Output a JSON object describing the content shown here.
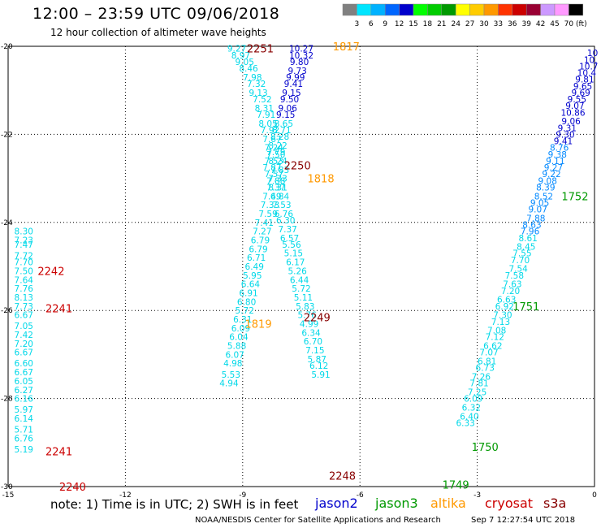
{
  "title": "12:00 – 23:59 UTC 09/06/2018",
  "subtitle": "12 hour collection of altimeter wave heights",
  "note": "note:  1) Time is in UTC;  2) SWH is in feet",
  "credit_left": "NOAA/NESDIS Center for Satellite Applications and Research",
  "credit_right": "Sep  7 12:27:54 UTC 2018",
  "satellites": [
    {
      "name": "jason2",
      "color": "#0000cc"
    },
    {
      "name": "jason3",
      "color": "#009900"
    },
    {
      "name": "altika",
      "color": "#ff9900"
    },
    {
      "name": "cryosat",
      "color": "#cc0000"
    },
    {
      "name": "s3a",
      "color": "#880000"
    }
  ],
  "colorbar": {
    "unit": "(ft)",
    "labels": [
      "3",
      "6",
      "9",
      "12",
      "15",
      "18",
      "21",
      "24",
      "27",
      "30",
      "33",
      "36",
      "39",
      "42",
      "45",
      "70"
    ],
    "colors": [
      "#808080",
      "#00e5ff",
      "#00b2ff",
      "#0066ff",
      "#0000cc",
      "#00ff00",
      "#00cc00",
      "#009900",
      "#ffff00",
      "#ffcc00",
      "#ff9900",
      "#ff3300",
      "#cc0000",
      "#990033",
      "#cc99ff",
      "#ff99ff",
      "#000000"
    ]
  },
  "chart_data": {
    "type": "scatter",
    "xlabel": "",
    "ylabel": "",
    "xlim": [
      -15,
      0
    ],
    "ylim": [
      -30,
      -20
    ],
    "xticks": [
      -15,
      -12,
      -9,
      -6,
      -3,
      0
    ],
    "yticks": [
      -20,
      -22,
      -24,
      -26,
      -28,
      -30
    ],
    "grid": true,
    "tracks": [
      {
        "label": "2251",
        "color": "#880000",
        "x": -8.55,
        "y": -20.05
      },
      {
        "label": "1817",
        "color": "#ff9900",
        "x": -6.35,
        "y": -20.0
      },
      {
        "label": "2250",
        "color": "#880000",
        "x": -7.6,
        "y": -22.7
      },
      {
        "label": "1818",
        "color": "#ff9900",
        "x": -7.0,
        "y": -23.0
      },
      {
        "label": "2242",
        "color": "#cc0000",
        "x": -13.9,
        "y": -25.1
      },
      {
        "label": "2241",
        "color": "#cc0000",
        "x": -13.7,
        "y": -25.95
      },
      {
        "label": "2249",
        "color": "#880000",
        "x": -7.1,
        "y": -26.15
      },
      {
        "label": "1819",
        "color": "#ff9900",
        "x": -8.6,
        "y": -26.3
      },
      {
        "label": "2241",
        "color": "#cc0000",
        "x": -13.7,
        "y": -29.2
      },
      {
        "label": "2248",
        "color": "#880000",
        "x": -6.45,
        "y": -29.75
      },
      {
        "label": "2240",
        "color": "#cc0000",
        "x": -13.35,
        "y": -30.0
      },
      {
        "label": "1752",
        "color": "#009900",
        "x": -0.5,
        "y": -23.4
      },
      {
        "label": "1751",
        "color": "#009900",
        "x": -1.75,
        "y": -25.9
      },
      {
        "label": "1750",
        "color": "#009900",
        "x": -2.8,
        "y": -29.1
      },
      {
        "label": "1749",
        "color": "#009900",
        "x": -3.55,
        "y": -29.95
      }
    ],
    "series": [
      {
        "color": "#00d8e8",
        "points": [
          [
            -14.6,
            -24.2,
            "8.30"
          ],
          [
            -14.6,
            -24.4,
            "7.23"
          ],
          [
            -14.6,
            -24.5,
            "7.47"
          ],
          [
            -14.6,
            -24.75,
            "7.72"
          ],
          [
            -14.6,
            -24.9,
            "7.70"
          ],
          [
            -14.6,
            -25.1,
            "7.50"
          ],
          [
            -14.6,
            -25.3,
            "7.64"
          ],
          [
            -14.6,
            -25.5,
            "7.76"
          ],
          [
            -14.6,
            -25.7,
            "8.13"
          ],
          [
            -14.6,
            -25.9,
            "7.73"
          ],
          [
            -14.6,
            -26.1,
            "6.67"
          ],
          [
            -14.6,
            -26.35,
            "7.05"
          ],
          [
            -14.6,
            -26.55,
            "7.42"
          ],
          [
            -14.6,
            -26.75,
            "7.20"
          ],
          [
            -14.6,
            -26.95,
            "6.67"
          ],
          [
            -14.6,
            -27.2,
            "6.60"
          ],
          [
            -14.6,
            -27.4,
            "6.67"
          ],
          [
            -14.6,
            -27.6,
            "6.05"
          ],
          [
            -14.6,
            -27.8,
            "6.27"
          ],
          [
            -14.6,
            -28.0,
            "6.16"
          ],
          [
            -14.6,
            -28.25,
            "5.97"
          ],
          [
            -14.6,
            -28.45,
            "6.14"
          ],
          [
            -14.6,
            -28.7,
            "5.71"
          ],
          [
            -14.6,
            -28.9,
            "6.76"
          ],
          [
            -14.6,
            -29.15,
            "5.19"
          ]
        ]
      },
      {
        "color": "#00d8e8",
        "points": [
          [
            -9.15,
            -20.05,
            "9.27"
          ],
          [
            -9.05,
            -20.2,
            "8.97"
          ],
          [
            -8.95,
            -20.35,
            "9.05"
          ],
          [
            -8.85,
            -20.5,
            "8.46"
          ],
          [
            -8.75,
            -20.7,
            "7.98"
          ],
          [
            -8.65,
            -20.85,
            "7.32"
          ],
          [
            -8.6,
            -21.05,
            "9.13"
          ],
          [
            -8.5,
            -21.2,
            "7.52"
          ],
          [
            -8.45,
            -21.4,
            "8.31"
          ],
          [
            -8.4,
            -21.55,
            "7.91"
          ],
          [
            -8.35,
            -21.75,
            "8.05"
          ],
          [
            -8.3,
            -21.9,
            "7.92"
          ],
          [
            -8.25,
            -22.1,
            "7.67"
          ],
          [
            -8.2,
            -22.3,
            "7.24"
          ],
          [
            -8.15,
            -22.45,
            "7.50"
          ],
          [
            -8.1,
            -22.6,
            "8.24"
          ],
          [
            -8.05,
            -22.8,
            "7.83"
          ]
        ]
      },
      {
        "color": "#0000cc",
        "points": [
          [
            -7.5,
            -20.05,
            "10.27"
          ],
          [
            -7.5,
            -20.2,
            "10.32"
          ],
          [
            -7.55,
            -20.35,
            "9.80"
          ],
          [
            -7.6,
            -20.55,
            "9.73"
          ],
          [
            -7.65,
            -20.7,
            "9.99"
          ],
          [
            -7.7,
            -20.85,
            "9.41"
          ],
          [
            -7.75,
            -21.05,
            "9.15"
          ],
          [
            -7.8,
            -21.2,
            "9.50"
          ],
          [
            -7.85,
            -21.4,
            "9.06"
          ],
          [
            -7.9,
            -21.55,
            "9.15"
          ]
        ]
      },
      {
        "color": "#00d8e8",
        "points": [
          [
            -7.95,
            -21.75,
            "8.65"
          ],
          [
            -8.0,
            -21.9,
            "8.71"
          ],
          [
            -8.05,
            -22.05,
            "8.28"
          ],
          [
            -8.1,
            -22.25,
            "8.22"
          ],
          [
            -8.15,
            -22.4,
            "7.79"
          ],
          [
            -8.2,
            -22.6,
            "7.53"
          ],
          [
            -8.25,
            -22.75,
            "7.87"
          ],
          [
            -8.2,
            -22.9,
            "7.57"
          ],
          [
            -8.15,
            -23.05,
            "7.88"
          ],
          [
            -8.1,
            -23.2,
            "8.31"
          ],
          [
            -8.05,
            -23.4,
            "6.84"
          ],
          [
            -8.0,
            -23.6,
            "7.53"
          ],
          [
            -7.95,
            -23.8,
            "6.76"
          ],
          [
            -7.9,
            -23.95,
            "6.30"
          ],
          [
            -7.85,
            -24.15,
            "7.37"
          ],
          [
            -7.8,
            -24.35,
            "6.57"
          ],
          [
            -7.75,
            -24.5,
            "5.56"
          ],
          [
            -7.7,
            -24.7,
            "5.15"
          ],
          [
            -7.65,
            -24.9,
            "6.17"
          ],
          [
            -7.6,
            -25.1,
            "5.26"
          ],
          [
            -7.55,
            -25.3,
            "6.44"
          ],
          [
            -7.5,
            -25.5,
            "5.72"
          ],
          [
            -7.45,
            -25.7,
            "5.11"
          ],
          [
            -7.4,
            -25.9,
            "5.83"
          ],
          [
            -7.35,
            -26.1,
            "5.76"
          ],
          [
            -7.3,
            -26.3,
            "4.99"
          ],
          [
            -7.25,
            -26.5,
            "6.34"
          ],
          [
            -7.2,
            -26.7,
            "6.70"
          ],
          [
            -7.15,
            -26.9,
            "7.15"
          ],
          [
            -7.1,
            -27.1,
            "5.87"
          ],
          [
            -7.05,
            -27.25,
            "6.12"
          ],
          [
            -7.0,
            -27.45,
            "5.91"
          ]
        ]
      },
      {
        "color": "#00d8e8",
        "points": [
          [
            -8.1,
            -23.0,
            "7.33"
          ],
          [
            -8.15,
            -23.2,
            "7.37"
          ],
          [
            -8.25,
            -23.4,
            "7.49"
          ],
          [
            -8.3,
            -23.6,
            "7.33"
          ],
          [
            -8.35,
            -23.8,
            "7.59"
          ],
          [
            -8.45,
            -24.0,
            "7.41"
          ],
          [
            -8.5,
            -24.2,
            "7.27"
          ],
          [
            -8.55,
            -24.4,
            "6.79"
          ],
          [
            -8.6,
            -24.6,
            "6.79"
          ],
          [
            -8.65,
            -24.8,
            "6.71"
          ],
          [
            -8.7,
            -25.0,
            "6.49"
          ],
          [
            -8.75,
            -25.2,
            "5.95"
          ],
          [
            -8.8,
            -25.4,
            "6.64"
          ],
          [
            -8.85,
            -25.6,
            "6.91"
          ],
          [
            -8.9,
            -25.8,
            "6.80"
          ],
          [
            -8.95,
            -26.0,
            "5.72"
          ],
          [
            -9.0,
            -26.2,
            "6.31"
          ],
          [
            -9.05,
            -26.4,
            "6.09"
          ],
          [
            -9.1,
            -26.6,
            "6.04"
          ],
          [
            -9.15,
            -26.8,
            "5.88"
          ],
          [
            -9.2,
            -27.0,
            "6.07"
          ],
          [
            -9.25,
            -27.2,
            "4.98"
          ],
          [
            -9.3,
            -27.45,
            "5.53"
          ],
          [
            -9.35,
            -27.65,
            "4.94"
          ]
        ]
      },
      {
        "color": "#0000cc",
        "points": [
          [
            -0.05,
            -20.15,
            "10"
          ],
          [
            -0.1,
            -20.3,
            "10."
          ],
          [
            -0.15,
            -20.45,
            "10.7"
          ],
          [
            -0.2,
            -20.6,
            "10.4"
          ],
          [
            -0.25,
            -20.75,
            "9.81"
          ],
          [
            -0.3,
            -20.9,
            "9.65"
          ],
          [
            -0.35,
            -21.05,
            "9.69"
          ],
          [
            -0.45,
            -21.2,
            "9.55"
          ],
          [
            -0.5,
            -21.35,
            "9.07"
          ],
          [
            -0.55,
            -21.5,
            "10.86"
          ],
          [
            -0.6,
            -21.7,
            "9.06"
          ],
          [
            -0.7,
            -21.85,
            "9.31"
          ],
          [
            -0.75,
            -22.0,
            "9.30"
          ],
          [
            -0.8,
            -22.15,
            "9.41"
          ]
        ]
      },
      {
        "color": "#0088ff",
        "points": [
          [
            -0.9,
            -22.3,
            "8.76"
          ],
          [
            -0.95,
            -22.45,
            "9.38"
          ],
          [
            -1.0,
            -22.6,
            "9.11"
          ],
          [
            -1.05,
            -22.75,
            "9.27"
          ],
          [
            -1.1,
            -22.9,
            "9.22"
          ],
          [
            -1.2,
            -23.05,
            "9.08"
          ],
          [
            -1.25,
            -23.2,
            "8.39"
          ],
          [
            -1.3,
            -23.4,
            "8.52"
          ],
          [
            -1.4,
            -23.55,
            "9.05"
          ],
          [
            -1.45,
            -23.7,
            "9.07"
          ],
          [
            -1.5,
            -23.9,
            "7.88"
          ],
          [
            -1.6,
            -24.05,
            "8.63"
          ],
          [
            -1.65,
            -24.2,
            "7.96"
          ]
        ]
      },
      {
        "color": "#00d8e8",
        "points": [
          [
            -1.7,
            -24.35,
            "8.61"
          ],
          [
            -1.75,
            -24.55,
            "8.45"
          ],
          [
            -1.85,
            -24.7,
            "7.55"
          ],
          [
            -1.9,
            -24.85,
            "7.70"
          ],
          [
            -1.95,
            -25.05,
            "7.54"
          ],
          [
            -2.05,
            -25.2,
            "7.58"
          ],
          [
            -2.1,
            -25.4,
            "7.63"
          ],
          [
            -2.15,
            -25.55,
            "7.20"
          ],
          [
            -2.25,
            -25.75,
            "6.63"
          ],
          [
            -2.3,
            -25.9,
            "6.92"
          ],
          [
            -2.35,
            -26.1,
            "7.30"
          ],
          [
            -2.4,
            -26.25,
            "7.13"
          ],
          [
            -2.5,
            -26.45,
            "7.08"
          ],
          [
            -2.55,
            -26.6,
            "7.12"
          ],
          [
            -2.6,
            -26.8,
            "6.62"
          ],
          [
            -2.7,
            -26.95,
            "7.07"
          ],
          [
            -2.75,
            -27.15,
            "6.81"
          ],
          [
            -2.8,
            -27.3,
            "6.73"
          ],
          [
            -2.9,
            -27.5,
            "7.26"
          ],
          [
            -2.95,
            -27.65,
            "7.81"
          ],
          [
            -3.0,
            -27.85,
            "7.25"
          ],
          [
            -3.1,
            -28.0,
            "6.09"
          ],
          [
            -3.15,
            -28.2,
            "6.32"
          ],
          [
            -3.2,
            -28.4,
            "6.40"
          ],
          [
            -3.3,
            -28.55,
            "6.33"
          ]
        ]
      }
    ]
  }
}
